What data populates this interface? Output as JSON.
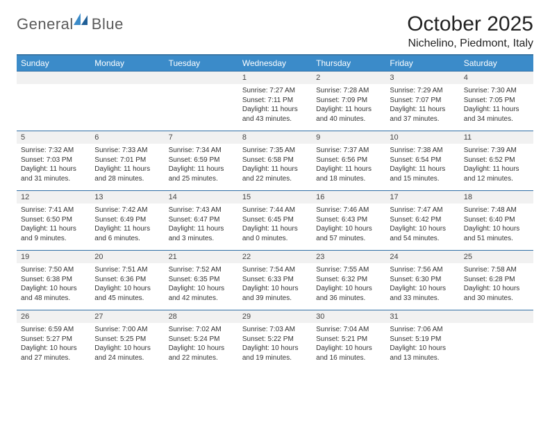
{
  "brand": {
    "word1": "General",
    "word2": "Blue"
  },
  "title": "October 2025",
  "location": "Nichelino, Piedmont, Italy",
  "colors": {
    "header_bg": "#3b8bc9",
    "divider": "#2e6da4",
    "day_bg": "#f1f1f1",
    "background": "#ffffff",
    "text": "#222222"
  },
  "fonts": {
    "title_size_pt": 22,
    "location_size_pt": 12,
    "header_size_pt": 9,
    "body_size_pt": 7.5
  },
  "weekdays": [
    "Sunday",
    "Monday",
    "Tuesday",
    "Wednesday",
    "Thursday",
    "Friday",
    "Saturday"
  ],
  "grid": {
    "columns": 7,
    "rows": 5,
    "leading_blanks": 3,
    "trailing_blanks": 1
  },
  "days": [
    {
      "n": "1",
      "sr": "Sunrise: 7:27 AM",
      "ss": "Sunset: 7:11 PM",
      "dl": "Daylight: 11 hours and 43 minutes."
    },
    {
      "n": "2",
      "sr": "Sunrise: 7:28 AM",
      "ss": "Sunset: 7:09 PM",
      "dl": "Daylight: 11 hours and 40 minutes."
    },
    {
      "n": "3",
      "sr": "Sunrise: 7:29 AM",
      "ss": "Sunset: 7:07 PM",
      "dl": "Daylight: 11 hours and 37 minutes."
    },
    {
      "n": "4",
      "sr": "Sunrise: 7:30 AM",
      "ss": "Sunset: 7:05 PM",
      "dl": "Daylight: 11 hours and 34 minutes."
    },
    {
      "n": "5",
      "sr": "Sunrise: 7:32 AM",
      "ss": "Sunset: 7:03 PM",
      "dl": "Daylight: 11 hours and 31 minutes."
    },
    {
      "n": "6",
      "sr": "Sunrise: 7:33 AM",
      "ss": "Sunset: 7:01 PM",
      "dl": "Daylight: 11 hours and 28 minutes."
    },
    {
      "n": "7",
      "sr": "Sunrise: 7:34 AM",
      "ss": "Sunset: 6:59 PM",
      "dl": "Daylight: 11 hours and 25 minutes."
    },
    {
      "n": "8",
      "sr": "Sunrise: 7:35 AM",
      "ss": "Sunset: 6:58 PM",
      "dl": "Daylight: 11 hours and 22 minutes."
    },
    {
      "n": "9",
      "sr": "Sunrise: 7:37 AM",
      "ss": "Sunset: 6:56 PM",
      "dl": "Daylight: 11 hours and 18 minutes."
    },
    {
      "n": "10",
      "sr": "Sunrise: 7:38 AM",
      "ss": "Sunset: 6:54 PM",
      "dl": "Daylight: 11 hours and 15 minutes."
    },
    {
      "n": "11",
      "sr": "Sunrise: 7:39 AM",
      "ss": "Sunset: 6:52 PM",
      "dl": "Daylight: 11 hours and 12 minutes."
    },
    {
      "n": "12",
      "sr": "Sunrise: 7:41 AM",
      "ss": "Sunset: 6:50 PM",
      "dl": "Daylight: 11 hours and 9 minutes."
    },
    {
      "n": "13",
      "sr": "Sunrise: 7:42 AM",
      "ss": "Sunset: 6:49 PM",
      "dl": "Daylight: 11 hours and 6 minutes."
    },
    {
      "n": "14",
      "sr": "Sunrise: 7:43 AM",
      "ss": "Sunset: 6:47 PM",
      "dl": "Daylight: 11 hours and 3 minutes."
    },
    {
      "n": "15",
      "sr": "Sunrise: 7:44 AM",
      "ss": "Sunset: 6:45 PM",
      "dl": "Daylight: 11 hours and 0 minutes."
    },
    {
      "n": "16",
      "sr": "Sunrise: 7:46 AM",
      "ss": "Sunset: 6:43 PM",
      "dl": "Daylight: 10 hours and 57 minutes."
    },
    {
      "n": "17",
      "sr": "Sunrise: 7:47 AM",
      "ss": "Sunset: 6:42 PM",
      "dl": "Daylight: 10 hours and 54 minutes."
    },
    {
      "n": "18",
      "sr": "Sunrise: 7:48 AM",
      "ss": "Sunset: 6:40 PM",
      "dl": "Daylight: 10 hours and 51 minutes."
    },
    {
      "n": "19",
      "sr": "Sunrise: 7:50 AM",
      "ss": "Sunset: 6:38 PM",
      "dl": "Daylight: 10 hours and 48 minutes."
    },
    {
      "n": "20",
      "sr": "Sunrise: 7:51 AM",
      "ss": "Sunset: 6:36 PM",
      "dl": "Daylight: 10 hours and 45 minutes."
    },
    {
      "n": "21",
      "sr": "Sunrise: 7:52 AM",
      "ss": "Sunset: 6:35 PM",
      "dl": "Daylight: 10 hours and 42 minutes."
    },
    {
      "n": "22",
      "sr": "Sunrise: 7:54 AM",
      "ss": "Sunset: 6:33 PM",
      "dl": "Daylight: 10 hours and 39 minutes."
    },
    {
      "n": "23",
      "sr": "Sunrise: 7:55 AM",
      "ss": "Sunset: 6:32 PM",
      "dl": "Daylight: 10 hours and 36 minutes."
    },
    {
      "n": "24",
      "sr": "Sunrise: 7:56 AM",
      "ss": "Sunset: 6:30 PM",
      "dl": "Daylight: 10 hours and 33 minutes."
    },
    {
      "n": "25",
      "sr": "Sunrise: 7:58 AM",
      "ss": "Sunset: 6:28 PM",
      "dl": "Daylight: 10 hours and 30 minutes."
    },
    {
      "n": "26",
      "sr": "Sunrise: 6:59 AM",
      "ss": "Sunset: 5:27 PM",
      "dl": "Daylight: 10 hours and 27 minutes."
    },
    {
      "n": "27",
      "sr": "Sunrise: 7:00 AM",
      "ss": "Sunset: 5:25 PM",
      "dl": "Daylight: 10 hours and 24 minutes."
    },
    {
      "n": "28",
      "sr": "Sunrise: 7:02 AM",
      "ss": "Sunset: 5:24 PM",
      "dl": "Daylight: 10 hours and 22 minutes."
    },
    {
      "n": "29",
      "sr": "Sunrise: 7:03 AM",
      "ss": "Sunset: 5:22 PM",
      "dl": "Daylight: 10 hours and 19 minutes."
    },
    {
      "n": "30",
      "sr": "Sunrise: 7:04 AM",
      "ss": "Sunset: 5:21 PM",
      "dl": "Daylight: 10 hours and 16 minutes."
    },
    {
      "n": "31",
      "sr": "Sunrise: 7:06 AM",
      "ss": "Sunset: 5:19 PM",
      "dl": "Daylight: 10 hours and 13 minutes."
    }
  ]
}
